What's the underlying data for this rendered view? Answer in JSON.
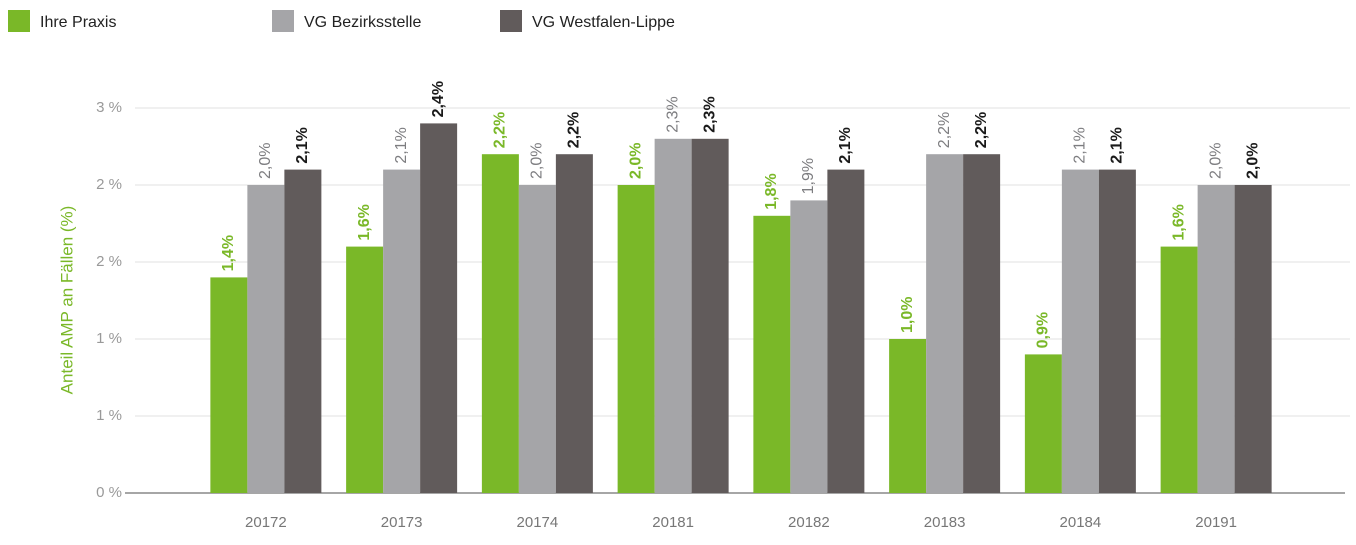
{
  "chart_data": {
    "type": "bar",
    "y_label": "Anteil AMP an Fällen (%)",
    "categories": [
      "20172",
      "20173",
      "20174",
      "20181",
      "20182",
      "20183",
      "20184",
      "20191"
    ],
    "series": [
      {
        "name": "Ihre Praxis",
        "color": "#7ab828",
        "label_color": "#7ab828",
        "values": [
          1.4,
          1.6,
          2.2,
          2.0,
          1.8,
          1.0,
          0.9,
          1.6
        ],
        "value_labels": [
          "1,4%",
          "1,6%",
          "2,2%",
          "2,0%",
          "1,8%",
          "1,0%",
          "0,9%",
          "1,6%"
        ]
      },
      {
        "name": "VG Bezirksstelle",
        "color": "#a5a5a8",
        "label_color": "#7d7d80",
        "values": [
          2.0,
          2.1,
          2.0,
          2.3,
          1.9,
          2.2,
          2.1,
          2.0
        ],
        "value_labels": [
          "2,0%",
          "2,1%",
          "2,0%",
          "2,3%",
          "1,9%",
          "2,2%",
          "2,1%",
          "2,0%"
        ]
      },
      {
        "name": "VG Westfalen-Lippe",
        "color": "#615b5b",
        "label_color": "#1a1a1a",
        "values": [
          2.1,
          2.4,
          2.2,
          2.3,
          2.1,
          2.2,
          2.1,
          2.0
        ],
        "value_labels": [
          "2,1%",
          "2,4%",
          "2,2%",
          "2,3%",
          "2,1%",
          "2,2%",
          "2,1%",
          "2,0%"
        ]
      }
    ],
    "ylim": [
      0,
      2.5
    ],
    "yticks": [
      {
        "value": 0,
        "label": "0 %"
      },
      {
        "value": 0.5,
        "label": "1 %"
      },
      {
        "value": 1.0,
        "label": "1 %"
      },
      {
        "value": 1.5,
        "label": "2 %"
      },
      {
        "value": 2.0,
        "label": "2 %"
      },
      {
        "value": 2.5,
        "label": "3 %"
      }
    ],
    "grid": true
  }
}
